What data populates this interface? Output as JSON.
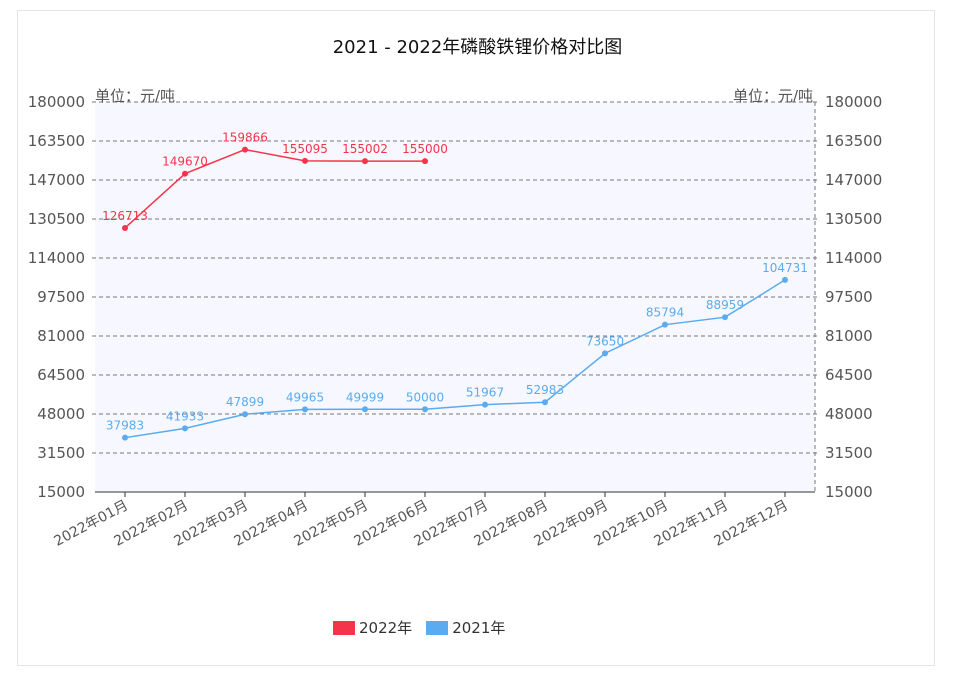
{
  "chart_data": {
    "type": "line",
    "title": "2021 - 2022年磷酸铁锂价格对比图",
    "unit_left": "单位：元/吨",
    "unit_right": "单位：元/吨",
    "categories": [
      "2022年01月",
      "2022年02月",
      "2022年03月",
      "2022年04月",
      "2022年05月",
      "2022年06月",
      "2022年07月",
      "2022年08月",
      "2022年09月",
      "2022年10月",
      "2022年11月",
      "2022年12月"
    ],
    "y_ticks": [
      180000,
      163500,
      147000,
      130500,
      114000,
      97500,
      81000,
      64500,
      48000,
      31500,
      15000
    ],
    "ylim": [
      15000,
      180000
    ],
    "grid": true,
    "legend_position": "bottom",
    "series": [
      {
        "name": "2022年",
        "color": "#f5344a",
        "values": [
          126713,
          149670,
          159866,
          155095,
          155002,
          155000,
          null,
          null,
          null,
          null,
          null,
          null
        ]
      },
      {
        "name": "2021年",
        "color": "#5aabf0",
        "values": [
          37983,
          41933,
          47899,
          49965,
          49999,
          50000,
          51967,
          52983,
          73650,
          85794,
          88959,
          104731
        ]
      }
    ]
  }
}
